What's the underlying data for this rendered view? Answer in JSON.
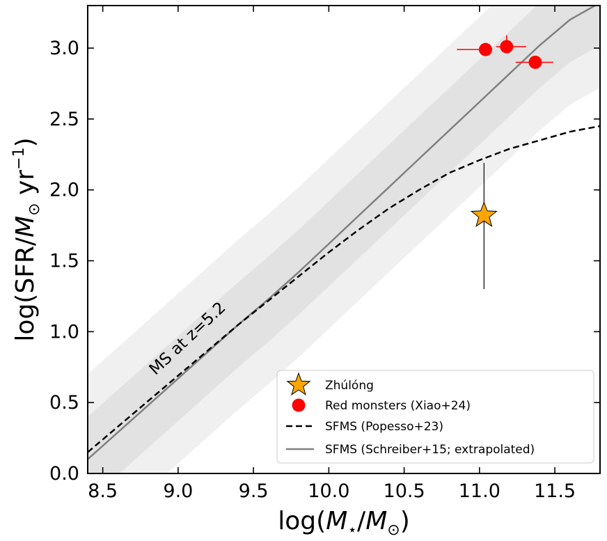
{
  "chart_data": {
    "type": "scatter",
    "xlabel": "log(M⋆/M⊙)",
    "ylabel": "log(SFR/M⊙ yr⁻¹)",
    "xlim": [
      8.4,
      11.8
    ],
    "ylim": [
      0.0,
      3.3
    ],
    "xticks": [
      "8.5",
      "9.0",
      "9.5",
      "10.0",
      "10.5",
      "11.0",
      "11.5"
    ],
    "yticks": [
      "0.0",
      "0.5",
      "1.0",
      "1.5",
      "2.0",
      "2.5",
      "3.0"
    ],
    "annotation": "MS at z=5.2",
    "colors": {
      "zhulong": "#ffa500",
      "red_monsters": "#ff0000",
      "popesso": "#000000",
      "schreiber": "#808080",
      "band_inner": "#e2e2e2",
      "band_outer": "#f0f0f0"
    },
    "series": [
      {
        "name": "Zhúlóng",
        "kind": "point",
        "marker": "star",
        "points": [
          {
            "x": 11.03,
            "y": 1.82,
            "yerr": [
              0.52,
              0.37
            ],
            "xerr": [
              0.05,
              0.05
            ]
          }
        ]
      },
      {
        "name": "Red monsters (Xiao+24)",
        "kind": "point",
        "marker": "circle",
        "points": [
          {
            "x": 11.04,
            "y": 2.99,
            "xerr": [
              0.19,
              0.0
            ]
          },
          {
            "x": 11.18,
            "y": 3.01,
            "xerr": [
              0.07,
              0.13
            ],
            "yerr": [
              0.0,
              0.08
            ]
          },
          {
            "x": 11.37,
            "y": 2.9,
            "xerr": [
              0.13,
              0.12
            ]
          }
        ]
      },
      {
        "name": "SFMS (Popesso+23)",
        "kind": "line",
        "style": "dashed",
        "points": [
          {
            "x": 8.4,
            "y": 0.15
          },
          {
            "x": 8.6,
            "y": 0.33
          },
          {
            "x": 8.8,
            "y": 0.51
          },
          {
            "x": 9.0,
            "y": 0.69
          },
          {
            "x": 9.2,
            "y": 0.87
          },
          {
            "x": 9.4,
            "y": 1.05
          },
          {
            "x": 9.6,
            "y": 1.22
          },
          {
            "x": 9.8,
            "y": 1.39
          },
          {
            "x": 10.0,
            "y": 1.56
          },
          {
            "x": 10.2,
            "y": 1.72
          },
          {
            "x": 10.4,
            "y": 1.87
          },
          {
            "x": 10.6,
            "y": 2.0
          },
          {
            "x": 10.8,
            "y": 2.12
          },
          {
            "x": 11.0,
            "y": 2.21
          },
          {
            "x": 11.2,
            "y": 2.29
          },
          {
            "x": 11.4,
            "y": 2.35
          },
          {
            "x": 11.6,
            "y": 2.41
          },
          {
            "x": 11.8,
            "y": 2.45
          }
        ]
      },
      {
        "name": "SFMS (Schreiber+15; extrapolated)",
        "kind": "line",
        "style": "solid",
        "points": [
          {
            "x": 8.4,
            "y": 0.1
          },
          {
            "x": 8.6,
            "y": 0.29
          },
          {
            "x": 8.8,
            "y": 0.48
          },
          {
            "x": 9.0,
            "y": 0.67
          },
          {
            "x": 9.2,
            "y": 0.86
          },
          {
            "x": 9.4,
            "y": 1.05
          },
          {
            "x": 9.6,
            "y": 1.23
          },
          {
            "x": 9.8,
            "y": 1.42
          },
          {
            "x": 10.0,
            "y": 1.62
          },
          {
            "x": 10.2,
            "y": 1.82
          },
          {
            "x": 10.4,
            "y": 2.02
          },
          {
            "x": 10.6,
            "y": 2.22
          },
          {
            "x": 10.8,
            "y": 2.42
          },
          {
            "x": 11.0,
            "y": 2.62
          },
          {
            "x": 11.2,
            "y": 2.82
          },
          {
            "x": 11.4,
            "y": 3.02
          },
          {
            "x": 11.6,
            "y": 3.2
          },
          {
            "x": 11.8,
            "y": 3.32
          }
        ],
        "band_inner_halfwidth": 0.3,
        "band_outer_halfwidth": 0.6
      }
    ],
    "legend": {
      "position": "lower-right",
      "entries": [
        "Zhúlóng",
        "Red monsters (Xiao+24)",
        "SFMS (Popesso+23)",
        "SFMS (Schreiber+15; extrapolated)"
      ]
    }
  }
}
